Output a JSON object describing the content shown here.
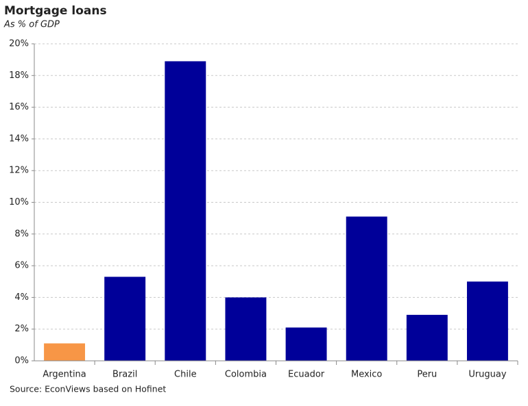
{
  "chart_data": {
    "type": "bar",
    "title": "Mortgage loans",
    "subtitle": "As % of GDP",
    "source": "Source: EconViews based on Hofinet",
    "categories": [
      "Argentina",
      "Brazil",
      "Chile",
      "Colombia",
      "Ecuador",
      "Mexico",
      "Peru",
      "Uruguay"
    ],
    "values": [
      1.1,
      5.3,
      18.9,
      4.0,
      2.1,
      9.1,
      2.9,
      5.0
    ],
    "colors": [
      "#f79646",
      "#000099",
      "#000099",
      "#000099",
      "#000099",
      "#000099",
      "#000099",
      "#000099"
    ],
    "ylim": [
      0,
      20
    ],
    "yticks": [
      {
        "value": 0,
        "label": "0%"
      },
      {
        "value": 2,
        "label": "2%"
      },
      {
        "value": 4,
        "label": "4%"
      },
      {
        "value": 6,
        "label": "6%"
      },
      {
        "value": 8,
        "label": "8%"
      },
      {
        "value": 10,
        "label": "10%"
      },
      {
        "value": 12,
        "label": "12%"
      },
      {
        "value": 14,
        "label": "14%"
      },
      {
        "value": 16,
        "label": "16%"
      },
      {
        "value": 18,
        "label": "18%"
      },
      {
        "value": 20,
        "label": "20%"
      }
    ],
    "grid": true
  }
}
